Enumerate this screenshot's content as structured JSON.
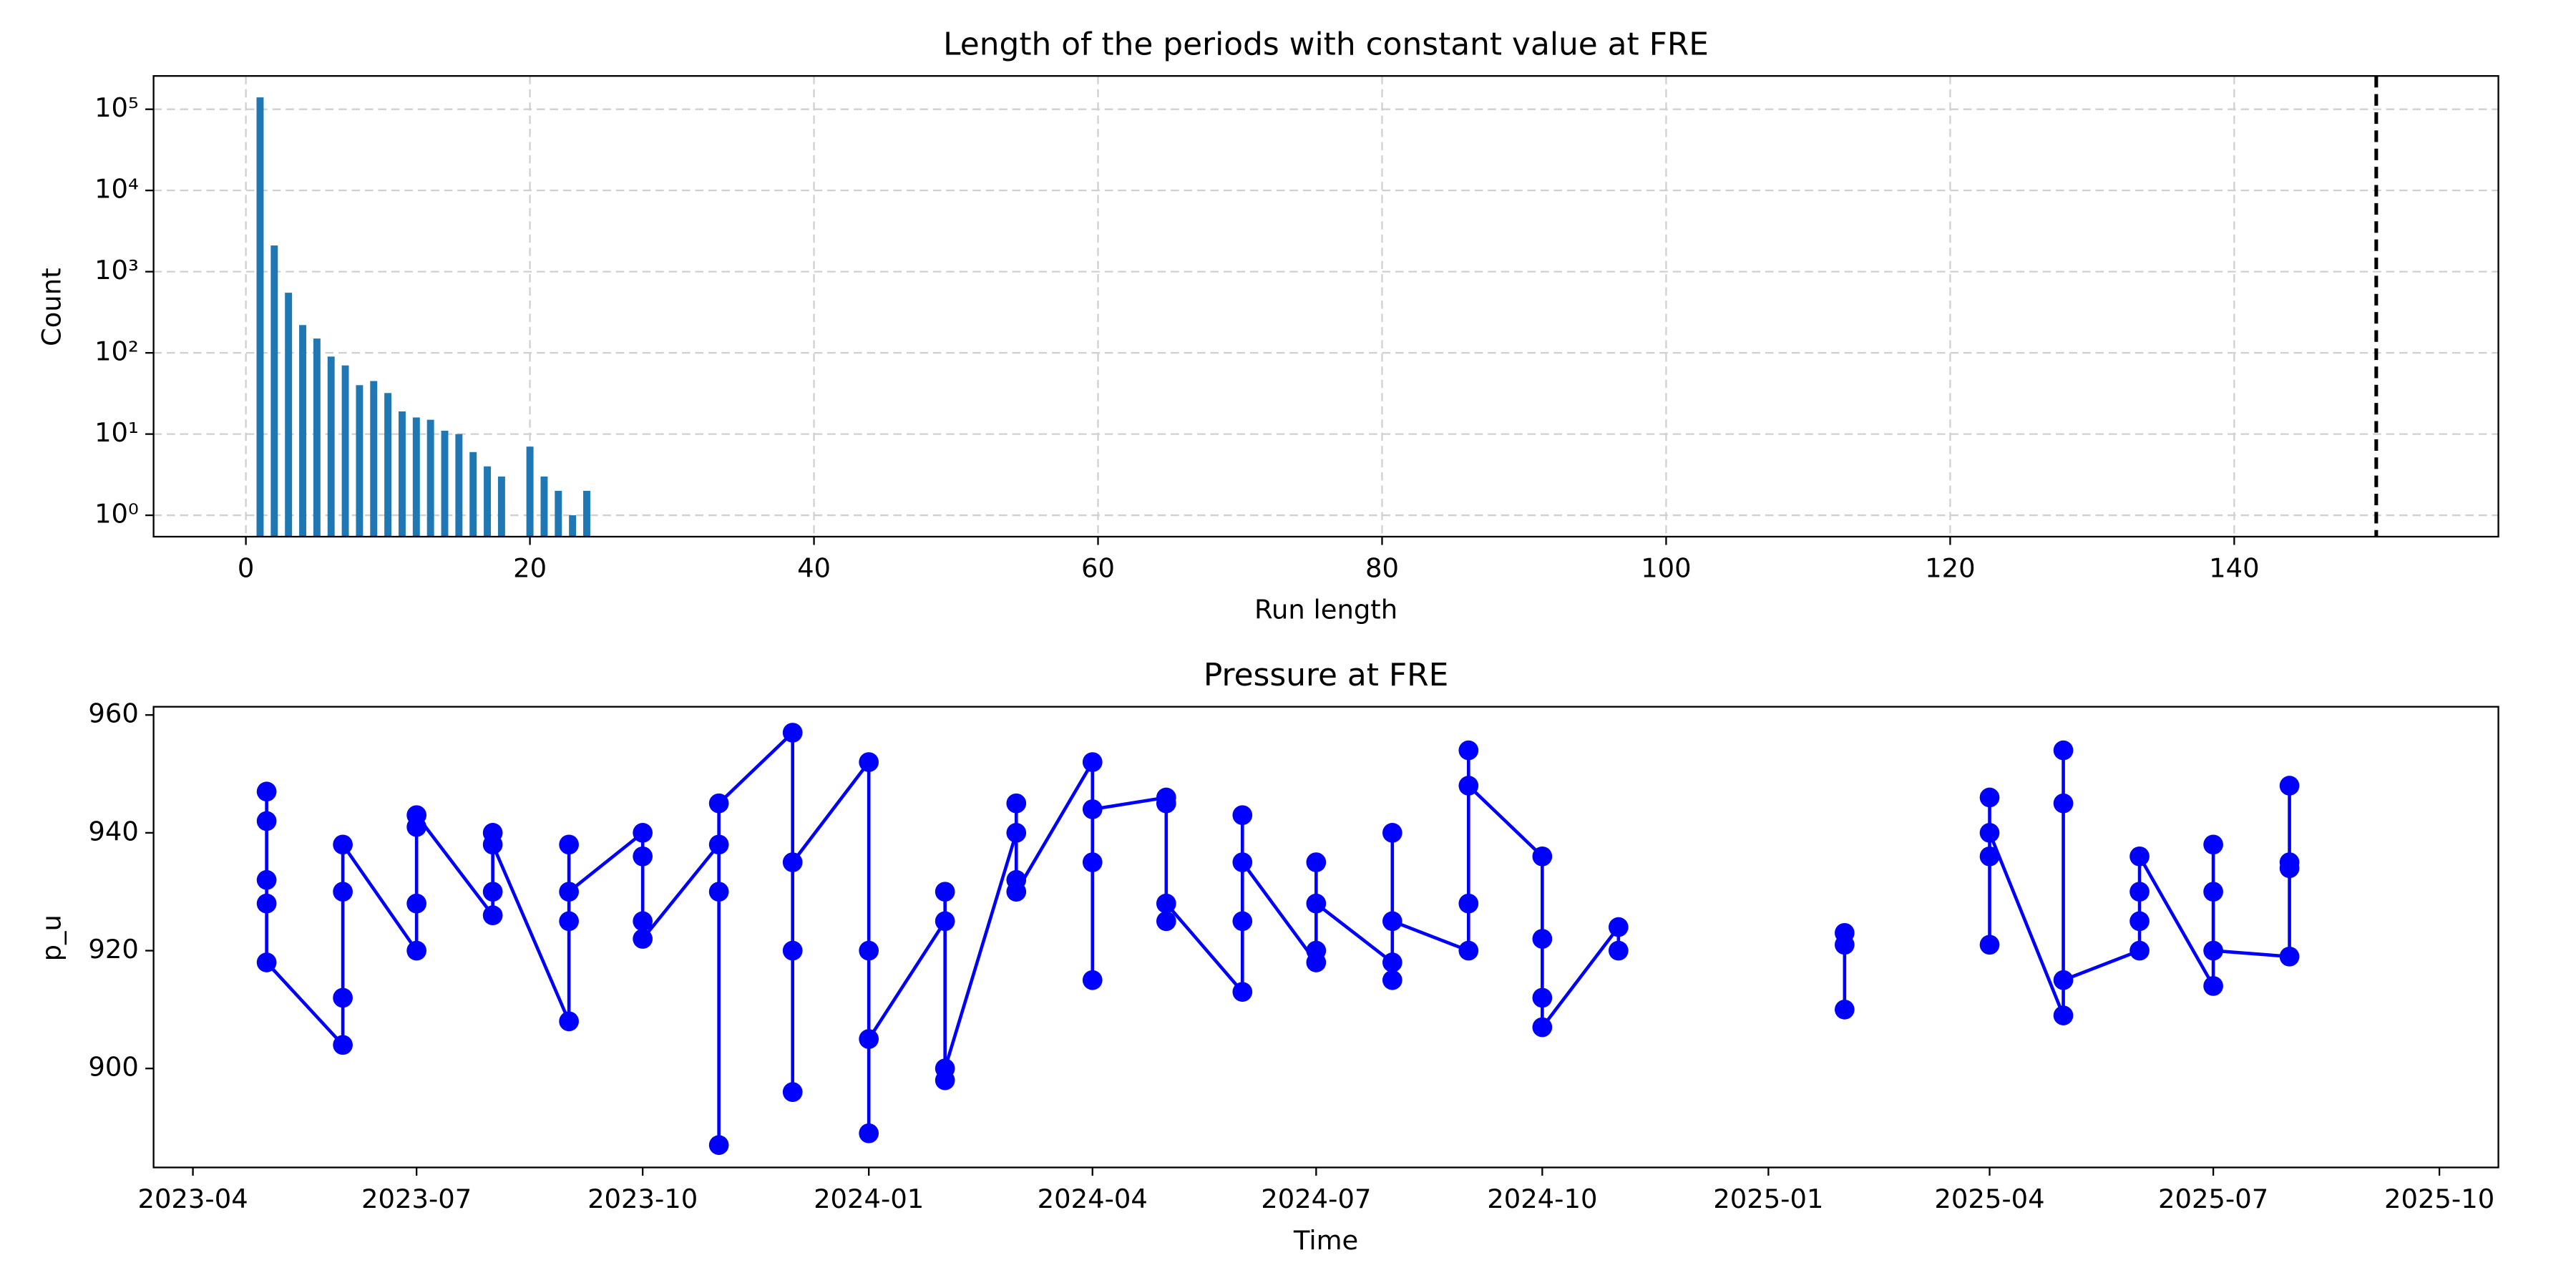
{
  "chart_data": [
    {
      "type": "bar",
      "title": "Length of the periods with constant value at FRE",
      "xlabel": "Run length",
      "ylabel": "Count",
      "x": [
        1,
        2,
        3,
        4,
        5,
        6,
        7,
        8,
        9,
        10,
        11,
        12,
        13,
        14,
        15,
        16,
        17,
        18,
        20,
        21,
        22,
        23,
        24
      ],
      "values": [
        140000,
        2100,
        550,
        220,
        150,
        90,
        70,
        40,
        45,
        32,
        19,
        16,
        15,
        11,
        10,
        6,
        4,
        3,
        7,
        3,
        2,
        1,
        2
      ],
      "color": "#1f77b4",
      "log_y": true,
      "grid": true,
      "xlim": [
        -6.5,
        158.6
      ],
      "xticks": [
        0,
        20,
        40,
        60,
        80,
        100,
        120,
        140
      ],
      "ylim": [
        0.545,
        257000
      ],
      "yticks": [
        {
          "value": 1,
          "label": "10⁰"
        },
        {
          "value": 10,
          "label": "10¹"
        },
        {
          "value": 100,
          "label": "10²"
        },
        {
          "value": 1000,
          "label": "10³"
        },
        {
          "value": 10000,
          "label": "10⁴"
        },
        {
          "value": 100000,
          "label": "10⁵"
        }
      ],
      "vline": 150,
      "vline_color": "#000000"
    },
    {
      "type": "line",
      "title": "Pressure at FRE",
      "xlabel": "Time",
      "ylabel": "p_u",
      "color": "#0000ff",
      "x": [
        "2023-05",
        "2023-05",
        "2023-05",
        "2023-05",
        "2023-05",
        "2023-06",
        "2023-06",
        "2023-06",
        "2023-06",
        "2023-07",
        "2023-07",
        "2023-07",
        "2023-07",
        "2023-08",
        "2023-08",
        "2023-08",
        "2023-08",
        "2023-09",
        "2023-09",
        "2023-09",
        "2023-09",
        "2023-10",
        "2023-10",
        "2023-10",
        "2023-10",
        "2023-11",
        "2023-11",
        "2023-11",
        "2023-11",
        "2023-12",
        "2023-12",
        "2023-12",
        "2023-12",
        "2024-01",
        "2024-01",
        "2024-01",
        "2024-01",
        "2024-02",
        "2024-02",
        "2024-02",
        "2024-02",
        "2024-03",
        "2024-03",
        "2024-03",
        "2024-03",
        "2024-04",
        "2024-04",
        "2024-04",
        "2024-04",
        "2024-05",
        "2024-05",
        "2024-05",
        "2024-05",
        "2024-06",
        "2024-06",
        "2024-06",
        "2024-06",
        "2024-07",
        "2024-07",
        "2024-07",
        "2024-07",
        "2024-08",
        "2024-08",
        "2024-08",
        "2024-08",
        "2024-09",
        "2024-09",
        "2024-09",
        "2024-09",
        "2024-10",
        "2024-10",
        "2024-10",
        "2024-10",
        "2024-11",
        "2024-11",
        "2024-12",
        "2025-02",
        "2025-02",
        "2025-02",
        "2025-03",
        "2025-04",
        "2025-04",
        "2025-04",
        "2025-04",
        "2025-05",
        "2025-05",
        "2025-05",
        "2025-05",
        "2025-06",
        "2025-06",
        "2025-06",
        "2025-06",
        "2025-07",
        "2025-07",
        "2025-07",
        "2025-07",
        "2025-08",
        "2025-08",
        "2025-08",
        "2025-08"
      ],
      "values": [
        942,
        947,
        932,
        928,
        918,
        904,
        930,
        912,
        938,
        920,
        941,
        928,
        943,
        926,
        940,
        930,
        938,
        908,
        925,
        938,
        930,
        940,
        925,
        936,
        922,
        938,
        930,
        887,
        945,
        957,
        920,
        896,
        935,
        952,
        920,
        889,
        905,
        925,
        898,
        930,
        900,
        940,
        932,
        945,
        930,
        952,
        935,
        915,
        944,
        946,
        925,
        945,
        928,
        913,
        943,
        925,
        935,
        918,
        935,
        920,
        928,
        918,
        940,
        915,
        925,
        920,
        954,
        928,
        948,
        936,
        912,
        922,
        907,
        924,
        920,
        null,
        921,
        923,
        910,
        null,
        936,
        946,
        921,
        940,
        909,
        945,
        954,
        915,
        920,
        930,
        925,
        936,
        914,
        930,
        938,
        920,
        919,
        935,
        948,
        934
      ],
      "xlim": [
        "2023-03-16",
        "2025-10-25"
      ],
      "xticks": [
        "2023-04",
        "2023-07",
        "2023-10",
        "2024-01",
        "2024-04",
        "2024-07",
        "2024-10",
        "2025-01",
        "2025-04",
        "2025-07",
        "2025-10"
      ],
      "ylim": [
        883.2,
        961.4
      ],
      "yticks": [
        900,
        920,
        940,
        960
      ],
      "grid": false
    }
  ]
}
